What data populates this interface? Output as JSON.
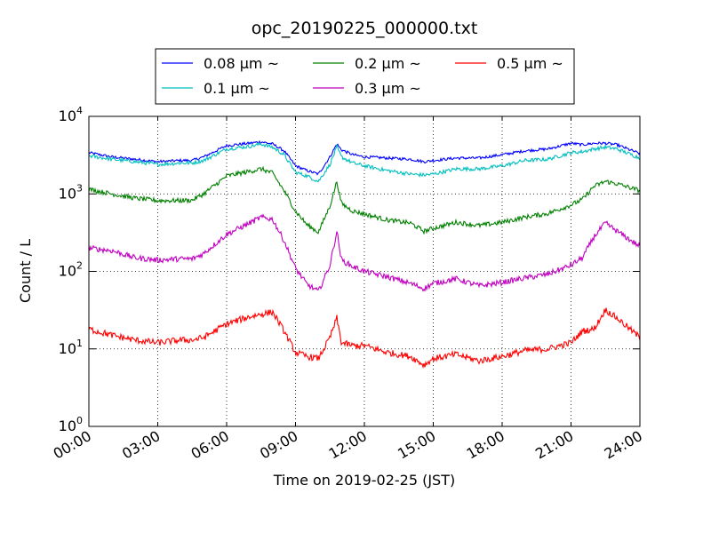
{
  "chart_data": {
    "type": "line",
    "title": "opc_20190225_000000.txt",
    "xlabel": "Time on 2019-02-25 (JST)",
    "ylabel": "Count / L",
    "x_unit": "hours",
    "xlim": [
      0,
      24
    ],
    "ylim": [
      1,
      10000
    ],
    "y_scale": "log",
    "grid": true,
    "legend_placement": "top-center-above-plot",
    "x_ticks": [
      {
        "value": 0,
        "label": "00:00"
      },
      {
        "value": 3,
        "label": "03:00"
      },
      {
        "value": 6,
        "label": "06:00"
      },
      {
        "value": 9,
        "label": "09:00"
      },
      {
        "value": 12,
        "label": "12:00"
      },
      {
        "value": 15,
        "label": "15:00"
      },
      {
        "value": 18,
        "label": "18:00"
      },
      {
        "value": 21,
        "label": "21:00"
      },
      {
        "value": 24,
        "label": "24:00"
      }
    ],
    "y_ticks": [
      {
        "value": 1,
        "base": "10",
        "exp": "0"
      },
      {
        "value": 10,
        "base": "10",
        "exp": "1"
      },
      {
        "value": 100,
        "base": "10",
        "exp": "2"
      },
      {
        "value": 1000,
        "base": "10",
        "exp": "3"
      },
      {
        "value": 10000,
        "base": "10",
        "exp": "4"
      }
    ],
    "x": [
      0,
      1,
      2,
      3,
      4,
      4.5,
      5,
      6,
      7,
      7.5,
      8,
      8.5,
      9,
      9.5,
      10,
      10.5,
      10.8,
      11,
      11.5,
      12,
      13,
      14,
      14.6,
      15,
      16,
      17,
      18,
      19,
      20,
      21,
      21.5,
      22,
      22.5,
      23,
      24
    ],
    "series": [
      {
        "name": "0.08 µm ~",
        "color": "#0000ff",
        "values": [
          3400,
          3000,
          2800,
          2600,
          2700,
          2700,
          3000,
          4200,
          4500,
          4700,
          4400,
          3600,
          2300,
          2000,
          1800,
          3000,
          4400,
          3700,
          3200,
          3000,
          2900,
          2800,
          2600,
          2700,
          2900,
          2900,
          3200,
          3600,
          3800,
          4500,
          4300,
          4500,
          4500,
          4300,
          3300
        ]
      },
      {
        "name": "0.1 µm ~",
        "color": "#00bfbf",
        "values": [
          3100,
          2800,
          2600,
          2400,
          2500,
          2500,
          2700,
          3800,
          4100,
          4400,
          4000,
          3200,
          1900,
          1700,
          1450,
          2400,
          4000,
          3000,
          2500,
          2300,
          2000,
          1800,
          1750,
          1800,
          2100,
          2100,
          2300,
          2700,
          2800,
          3400,
          3500,
          3800,
          4000,
          3800,
          2900
        ]
      },
      {
        "name": "0.2 µm ~",
        "color": "#008000",
        "values": [
          1150,
          1000,
          880,
          820,
          820,
          830,
          1000,
          1700,
          1950,
          2100,
          1850,
          1100,
          600,
          400,
          320,
          700,
          1450,
          750,
          600,
          550,
          460,
          420,
          330,
          360,
          430,
          390,
          430,
          500,
          560,
          720,
          850,
          1250,
          1450,
          1350,
          1100
        ]
      },
      {
        "name": "0.3 µm ~",
        "color": "#bf00bf",
        "values": [
          200,
          185,
          150,
          140,
          145,
          145,
          170,
          300,
          420,
          500,
          470,
          250,
          110,
          68,
          55,
          120,
          330,
          140,
          115,
          100,
          85,
          70,
          60,
          70,
          80,
          65,
          72,
          82,
          92,
          120,
          150,
          280,
          420,
          330,
          210
        ]
      },
      {
        "name": "0.5 µm ~",
        "color": "#ff0000",
        "values": [
          18,
          15,
          13,
          12,
          13,
          13,
          14,
          21,
          26,
          28,
          30,
          17,
          9,
          8,
          7.5,
          14,
          25,
          12,
          11,
          11,
          9,
          8,
          6.2,
          7.5,
          8.5,
          7,
          8,
          9.5,
          10,
          12,
          17,
          18,
          32,
          25,
          14
        ]
      }
    ]
  }
}
